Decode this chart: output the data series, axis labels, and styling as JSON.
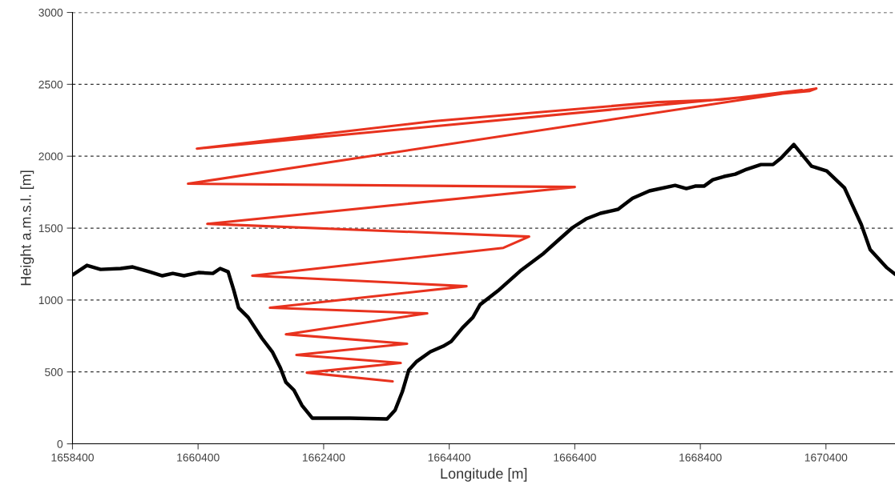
{
  "chart_data": {
    "type": "line",
    "xlabel": "Longitude [m]",
    "ylabel": "Height a.m.s.l. [m]",
    "xlim": [
      1658400,
      1671500
    ],
    "xticks": [
      1658400,
      1660400,
      1662400,
      1664400,
      1666400,
      1668400,
      1670400
    ],
    "ylim": [
      0,
      3000
    ],
    "yticks": [
      0,
      500,
      1000,
      1500,
      2000,
      2500,
      3000
    ],
    "grid": "y",
    "line_style": "solid",
    "marker": "none",
    "series": [
      {
        "color": "#000000",
        "x": [
          1658400,
          1658630,
          1658847,
          1659167,
          1659358,
          1659627,
          1659831,
          1659997,
          1660176,
          1660406,
          1660636,
          1660752,
          1660879,
          1660969,
          1661045,
          1661199,
          1661416,
          1661582,
          1661710,
          1661799,
          1661927,
          1662055,
          1662221,
          1662822,
          1663410,
          1663538,
          1663653,
          1663755,
          1663883,
          1664100,
          1664304,
          1664432,
          1664611,
          1664777,
          1664892,
          1665173,
          1665531,
          1665902,
          1666132,
          1666362,
          1666579,
          1666809,
          1667090,
          1667320,
          1667589,
          1667998,
          1668177,
          1668317,
          1668458,
          1668598,
          1668777,
          1668956,
          1669135,
          1669365,
          1669557,
          1669685,
          1669889,
          1670170,
          1670413,
          1670694,
          1670963,
          1671103,
          1671372,
          1671500
        ],
        "values": [
          1174,
          1241,
          1213,
          1219,
          1230,
          1196,
          1169,
          1185,
          1169,
          1191,
          1185,
          1219,
          1196,
          1068,
          946,
          879,
          735,
          640,
          529,
          428,
          373,
          267,
          178,
          178,
          173,
          234,
          362,
          512,
          573,
          640,
          679,
          712,
          807,
          879,
          968,
          1063,
          1202,
          1324,
          1414,
          1503,
          1564,
          1603,
          1631,
          1708,
          1759,
          1797,
          1775,
          1792,
          1792,
          1836,
          1859,
          1875,
          1909,
          1942,
          1942,
          1987,
          2081,
          1931,
          1898,
          1781,
          1525,
          1352,
          1224,
          1180
        ]
      },
      {
        "color": "#e8321e",
        "x": [
          1663499,
          1662132,
          1663627,
          1661966,
          1663729,
          1661799,
          1664049,
          1661544,
          1664675,
          1661263,
          1665263,
          1665672,
          1660547,
          1666400,
          1660240,
          1670247,
          1670145,
          1660381,
          1664138,
          1667717,
          1668739,
          1670017
        ],
        "values": [
          434,
          495,
          562,
          618,
          696,
          762,
          907,
          946,
          1096,
          1169,
          1363,
          1441,
          1530,
          1786,
          1809,
          2471,
          2454,
          2053,
          2243,
          2376,
          2393,
          2460
        ]
      }
    ]
  }
}
